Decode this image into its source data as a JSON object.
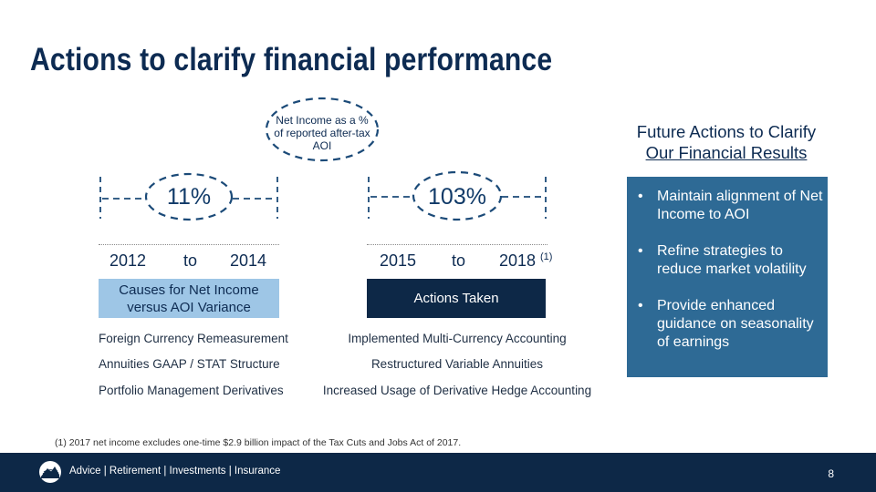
{
  "title": "Actions to clarify financial performance",
  "callout": "Net Income as a % of reported after-tax AOI",
  "left": {
    "percent": "11%",
    "year_start": "2012",
    "to": "to",
    "year_end": "2014",
    "box_label": "Causes for Net Income versus AOI Variance",
    "items": [
      "Foreign Currency Remeasurement",
      "Annuities GAAP / STAT Structure",
      "Portfolio Management Derivatives"
    ]
  },
  "right": {
    "percent": "103%",
    "year_start": "2015",
    "to": "to",
    "year_end": "2018",
    "footnote_marker": "(1)",
    "box_label": "Actions Taken",
    "items": [
      "Implemented Multi-Currency Accounting",
      "Restructured Variable Annuities",
      "Increased Usage of Derivative Hedge Accounting"
    ]
  },
  "future": {
    "title_line1": "Future Actions to Clarify",
    "title_line2": "Our Financial Results",
    "bullets": [
      "Maintain alignment of Net Income to AOI",
      "Refine strategies to reduce market volatility",
      "Provide enhanced guidance on seasonality of earnings"
    ]
  },
  "footnote": "(1)  2017 net income excludes one-time $2.9 billion impact of the Tax Cuts and Jobs Act of 2017.",
  "footer": {
    "tagline": "Advice  |  Retirement  |  Investments  |  Insurance",
    "page_number": "8"
  },
  "colors": {
    "navy": "#0d2847",
    "light_blue_box": "#9ec6e6",
    "panel_blue": "#2e6a95"
  }
}
